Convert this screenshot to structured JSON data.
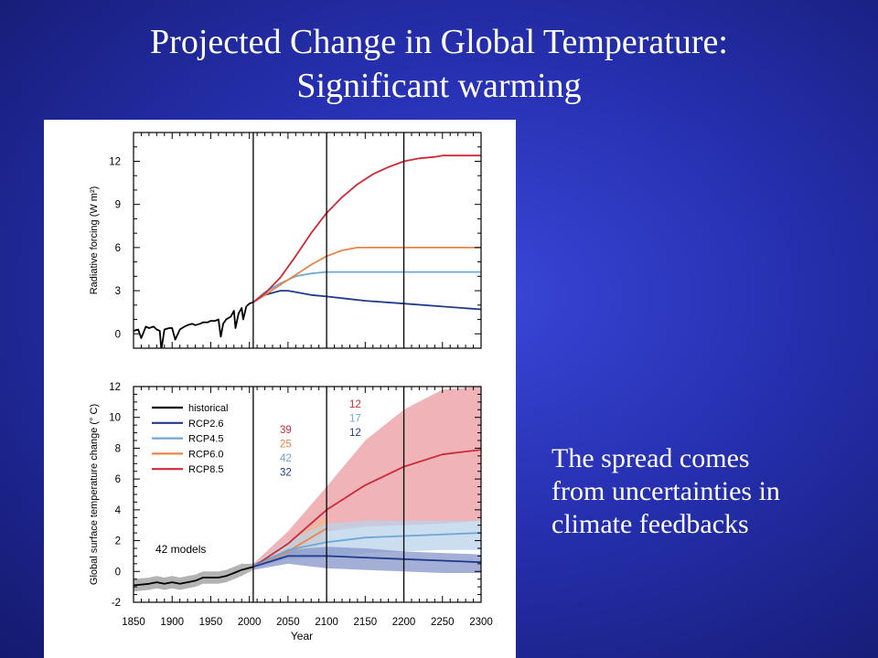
{
  "slide": {
    "title_line1": "Projected Change in Global Temperature:",
    "title_line2": "Significant warming",
    "note_lines": [
      "The spread comes",
      "from uncertainties in",
      "climate feedbacks"
    ]
  },
  "chart_data": [
    {
      "type": "line",
      "ylabel": "Radiative forcing (W m²)",
      "xlim": [
        1850,
        2300
      ],
      "ylim": [
        -1,
        14
      ],
      "yticks": [
        0,
        3,
        6,
        9,
        12
      ],
      "vlines": [
        2005,
        2100,
        2200
      ],
      "series": [
        {
          "name": "historical",
          "color": "#000000",
          "x": [
            1850,
            1856,
            1860,
            1866,
            1870,
            1876,
            1880,
            1884,
            1886,
            1890,
            1896,
            1900,
            1904,
            1910,
            1916,
            1920,
            1926,
            1930,
            1936,
            1940,
            1946,
            1950,
            1956,
            1960,
            1963,
            1966,
            1970,
            1976,
            1980,
            1982,
            1986,
            1990,
            1992,
            1996,
            2000,
            2005
          ],
          "y": [
            0.2,
            0.3,
            -0.3,
            0.5,
            0.4,
            0.5,
            0.3,
            0.2,
            -1.1,
            0.3,
            0.4,
            0.4,
            -0.4,
            0.3,
            0.5,
            0.6,
            0.7,
            0.6,
            0.7,
            0.8,
            0.8,
            0.9,
            0.9,
            1.0,
            -0.2,
            0.7,
            1.0,
            1.2,
            1.6,
            0.4,
            1.4,
            1.8,
            1.0,
            1.9,
            2.1,
            2.2
          ]
        },
        {
          "name": "RCP2.6",
          "color": "#1f3a8a",
          "x": [
            2005,
            2020,
            2040,
            2050,
            2060,
            2080,
            2100,
            2150,
            2200,
            2250,
            2300
          ],
          "y": [
            2.2,
            2.7,
            3.0,
            3.0,
            2.9,
            2.7,
            2.6,
            2.3,
            2.1,
            1.9,
            1.7
          ]
        },
        {
          "name": "RCP4.5",
          "color": "#6ea7d8",
          "x": [
            2005,
            2020,
            2040,
            2060,
            2080,
            2100,
            2150,
            2200,
            2250,
            2300
          ],
          "y": [
            2.2,
            2.9,
            3.5,
            4.0,
            4.2,
            4.3,
            4.3,
            4.3,
            4.3,
            4.3
          ]
        },
        {
          "name": "RCP6.0",
          "color": "#e8864a",
          "x": [
            2005,
            2020,
            2040,
            2060,
            2080,
            2100,
            2120,
            2140,
            2150,
            2200,
            2250,
            2300
          ],
          "y": [
            2.2,
            2.7,
            3.4,
            4.1,
            4.8,
            5.4,
            5.8,
            6.0,
            6.0,
            6.0,
            6.0,
            6.0
          ]
        },
        {
          "name": "RCP8.5",
          "color": "#cc2a36",
          "x": [
            2005,
            2020,
            2040,
            2060,
            2080,
            2100,
            2120,
            2140,
            2160,
            2180,
            2200,
            2220,
            2240,
            2250,
            2300
          ],
          "y": [
            2.2,
            2.8,
            3.9,
            5.4,
            7.0,
            8.4,
            9.5,
            10.4,
            11.1,
            11.6,
            12.0,
            12.2,
            12.3,
            12.4,
            12.4
          ]
        }
      ]
    },
    {
      "type": "area",
      "ylabel": "Global surface temperature change (° C)",
      "xlabel": "Year",
      "xlim": [
        1850,
        2300
      ],
      "ylim": [
        -2,
        12
      ],
      "xticks": [
        1850,
        1900,
        1950,
        2000,
        2050,
        2100,
        2150,
        2200,
        2250,
        2300
      ],
      "yticks": [
        -2,
        0,
        2,
        4,
        6,
        8,
        10,
        12
      ],
      "vlines": [
        2005,
        2100,
        2200
      ],
      "legend": [
        "historical",
        "RCP2.6",
        "RCP4.5",
        "RCP6.0",
        "RCP8.5"
      ],
      "annotation": "42 models",
      "model_counts_2100": [
        {
          "value": "39",
          "series": "RCP8.5"
        },
        {
          "value": "25",
          "series": "RCP6.0"
        },
        {
          "value": "42",
          "series": "RCP4.5"
        },
        {
          "value": "32",
          "series": "RCP2.6"
        }
      ],
      "model_counts_2300": [
        {
          "value": "12",
          "series": "RCP8.5"
        },
        {
          "value": "17",
          "series": "RCP4.5"
        },
        {
          "value": "12",
          "series": "RCP2.6"
        }
      ],
      "series": [
        {
          "name": "historical",
          "color": "#000000",
          "band": "#9a9a9a",
          "x": [
            1850,
            1870,
            1880,
            1890,
            1900,
            1910,
            1920,
            1930,
            1940,
            1950,
            1960,
            1970,
            1980,
            1990,
            2005
          ],
          "y": [
            -0.9,
            -0.8,
            -0.7,
            -0.8,
            -0.7,
            -0.8,
            -0.7,
            -0.6,
            -0.4,
            -0.4,
            -0.4,
            -0.3,
            -0.1,
            0.1,
            0.3
          ],
          "lo": [
            -1.3,
            -1.2,
            -1.1,
            -1.2,
            -1.1,
            -1.2,
            -1.1,
            -1.0,
            -0.8,
            -0.8,
            -0.8,
            -0.7,
            -0.5,
            -0.3,
            0.1
          ],
          "hi": [
            -0.5,
            -0.4,
            -0.3,
            -0.4,
            -0.3,
            -0.4,
            -0.3,
            -0.2,
            0.0,
            0.0,
            0.0,
            0.1,
            0.3,
            0.5,
            0.5
          ]
        },
        {
          "name": "RCP8.5",
          "color": "#cc2a36",
          "band": "#e99aa0",
          "x": [
            2005,
            2050,
            2100,
            2150,
            2200,
            2250,
            2300
          ],
          "y": [
            0.3,
            1.8,
            4.0,
            5.6,
            6.8,
            7.6,
            7.9
          ],
          "lo": [
            0.2,
            1.0,
            2.6,
            2.9,
            3.0,
            3.1,
            3.3
          ],
          "hi": [
            0.5,
            2.6,
            5.5,
            8.5,
            10.5,
            11.8,
            12.0
          ]
        },
        {
          "name": "RCP6.0",
          "color": "#e8864a",
          "band": "#f2b98f",
          "x": [
            2005,
            2050,
            2100
          ],
          "y": [
            0.3,
            1.3,
            2.8
          ],
          "lo": [
            0.2,
            0.9,
            1.8
          ],
          "hi": [
            0.5,
            1.8,
            3.6
          ]
        },
        {
          "name": "RCP4.5",
          "color": "#6ea7d8",
          "band": "#b9d3ea",
          "x": [
            2005,
            2050,
            2100,
            2150,
            2200,
            2250,
            2300
          ],
          "y": [
            0.3,
            1.4,
            1.9,
            2.2,
            2.3,
            2.4,
            2.5
          ],
          "lo": [
            0.2,
            0.8,
            0.9,
            1.2,
            1.3,
            1.4,
            1.4
          ],
          "hi": [
            0.5,
            2.0,
            3.1,
            3.3,
            3.3,
            3.3,
            3.3
          ]
        },
        {
          "name": "RCP2.6",
          "color": "#1f3a8a",
          "band": "#8594c9",
          "x": [
            2005,
            2050,
            2100,
            2150,
            2200,
            2250,
            2300
          ],
          "y": [
            0.3,
            1.0,
            1.0,
            0.9,
            0.8,
            0.7,
            0.6
          ],
          "lo": [
            0.1,
            0.5,
            0.2,
            0.1,
            0.0,
            -0.1,
            -0.1
          ],
          "hi": [
            0.5,
            1.4,
            1.6,
            1.5,
            1.3,
            1.2,
            1.1
          ]
        }
      ]
    }
  ]
}
